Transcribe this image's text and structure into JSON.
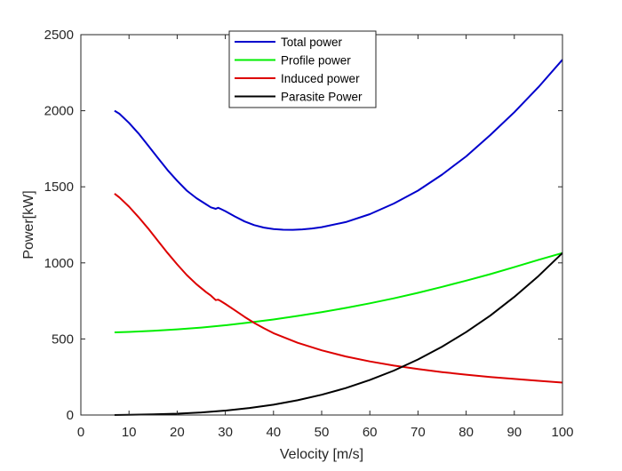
{
  "chart_data": {
    "type": "line",
    "title": "",
    "xlabel": "Velocity [m/s]",
    "ylabel": "Power[kW]",
    "xlim": [
      0,
      100
    ],
    "ylim": [
      0,
      2500
    ],
    "xticks": [
      0,
      10,
      20,
      30,
      40,
      50,
      60,
      70,
      80,
      90,
      100
    ],
    "yticks": [
      0,
      500,
      1000,
      1500,
      2000,
      2500
    ],
    "xtick_labels": [
      "0",
      "10",
      "20",
      "30",
      "40",
      "50",
      "60",
      "70",
      "80",
      "90",
      "100"
    ],
    "ytick_labels": [
      "0",
      "500",
      "1000",
      "1500",
      "2000",
      "2500"
    ],
    "grid": false,
    "legend_position": "top-center",
    "series": [
      {
        "name": "Total power",
        "color": "#0000cc",
        "x": [
          7,
          8,
          10,
          12,
          14,
          16,
          18,
          20,
          22,
          24,
          26,
          27,
          28,
          28.5,
          29,
          30,
          32,
          34,
          36,
          38,
          40,
          42,
          44,
          46,
          48,
          50,
          55,
          60,
          65,
          70,
          75,
          80,
          85,
          90,
          95,
          100
        ],
        "y": [
          2000,
          1980,
          1920,
          1850,
          1770,
          1690,
          1610,
          1540,
          1475,
          1425,
          1385,
          1365,
          1355,
          1362,
          1355,
          1340,
          1305,
          1272,
          1248,
          1232,
          1222,
          1218,
          1217,
          1220,
          1226,
          1235,
          1268,
          1320,
          1390,
          1475,
          1580,
          1700,
          1840,
          1990,
          2155,
          2335
        ]
      },
      {
        "name": "Profile power",
        "color": "#00ee00",
        "x": [
          7,
          10,
          15,
          20,
          25,
          30,
          35,
          40,
          45,
          50,
          55,
          60,
          65,
          70,
          75,
          80,
          85,
          90,
          95,
          100
        ],
        "y": [
          543,
          546,
          553,
          563,
          575,
          590,
          608,
          628,
          651,
          676,
          704,
          734,
          767,
          803,
          842,
          883,
          926,
          972,
          1020,
          1065
        ]
      },
      {
        "name": "Induced power",
        "color": "#dd0000",
        "x": [
          7,
          8,
          10,
          12,
          14,
          16,
          18,
          20,
          22,
          24,
          26,
          27,
          28,
          28.5,
          29,
          30,
          32,
          34,
          36,
          38,
          40,
          45,
          50,
          55,
          60,
          65,
          70,
          75,
          80,
          85,
          90,
          95,
          100
        ],
        "y": [
          1455,
          1430,
          1370,
          1300,
          1225,
          1145,
          1065,
          990,
          920,
          860,
          808,
          785,
          755,
          758,
          750,
          730,
          688,
          645,
          605,
          570,
          538,
          475,
          425,
          385,
          352,
          325,
          302,
          282,
          265,
          250,
          237,
          225,
          213
        ]
      },
      {
        "name": "Parasite Power",
        "color": "#000000",
        "x": [
          7,
          10,
          15,
          20,
          25,
          30,
          35,
          40,
          45,
          50,
          55,
          60,
          65,
          70,
          75,
          80,
          85,
          90,
          95,
          100
        ],
        "y": [
          0,
          1,
          4,
          9,
          17,
          29,
          46,
          68,
          97,
          133,
          177,
          230,
          292,
          365,
          449,
          545,
          653,
          776,
          913,
          1065
        ]
      }
    ]
  }
}
